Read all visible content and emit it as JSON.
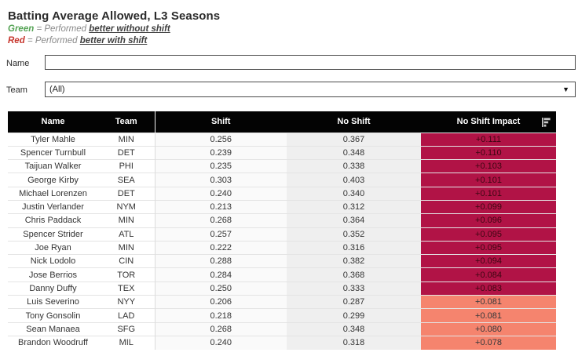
{
  "header": {
    "title": "Batting Average Allowed, L3 Seasons",
    "legend": [
      {
        "color_word": "Green",
        "mid": " = Performed ",
        "emphasis": "better without shift",
        "color": "#54a354"
      },
      {
        "color_word": "Red",
        "mid": " = Performed ",
        "emphasis": "better with shift",
        "color": "#c7372e"
      }
    ]
  },
  "filters": {
    "name_label": "Name",
    "name_value": "",
    "team_label": "Team",
    "team_value": "(All)",
    "caret_glyph": "▼"
  },
  "table": {
    "columns": [
      "Name",
      "Team",
      "Shift",
      "No Shift",
      "No Shift Impact"
    ],
    "colors": {
      "impact_high": "#b11346",
      "impact_low": "#f5846e",
      "header_bg": "#030303"
    },
    "rows": [
      {
        "name": "Tyler Mahle",
        "team": "MIN",
        "shift": "0.256",
        "no_shift": "0.367",
        "impact": "+0.111",
        "impact_level": "high"
      },
      {
        "name": "Spencer Turnbull",
        "team": "DET",
        "shift": "0.239",
        "no_shift": "0.348",
        "impact": "+0.110",
        "impact_level": "high"
      },
      {
        "name": "Taijuan Walker",
        "team": "PHI",
        "shift": "0.235",
        "no_shift": "0.338",
        "impact": "+0.103",
        "impact_level": "high"
      },
      {
        "name": "George Kirby",
        "team": "SEA",
        "shift": "0.303",
        "no_shift": "0.403",
        "impact": "+0.101",
        "impact_level": "high"
      },
      {
        "name": "Michael Lorenzen",
        "team": "DET",
        "shift": "0.240",
        "no_shift": "0.340",
        "impact": "+0.101",
        "impact_level": "high"
      },
      {
        "name": "Justin Verlander",
        "team": "NYM",
        "shift": "0.213",
        "no_shift": "0.312",
        "impact": "+0.099",
        "impact_level": "high"
      },
      {
        "name": "Chris Paddack",
        "team": "MIN",
        "shift": "0.268",
        "no_shift": "0.364",
        "impact": "+0.096",
        "impact_level": "high"
      },
      {
        "name": "Spencer Strider",
        "team": "ATL",
        "shift": "0.257",
        "no_shift": "0.352",
        "impact": "+0.095",
        "impact_level": "high"
      },
      {
        "name": "Joe Ryan",
        "team": "MIN",
        "shift": "0.222",
        "no_shift": "0.316",
        "impact": "+0.095",
        "impact_level": "high"
      },
      {
        "name": "Nick Lodolo",
        "team": "CIN",
        "shift": "0.288",
        "no_shift": "0.382",
        "impact": "+0.094",
        "impact_level": "high"
      },
      {
        "name": "Jose Berrios",
        "team": "TOR",
        "shift": "0.284",
        "no_shift": "0.368",
        "impact": "+0.084",
        "impact_level": "high"
      },
      {
        "name": "Danny Duffy",
        "team": "TEX",
        "shift": "0.250",
        "no_shift": "0.333",
        "impact": "+0.083",
        "impact_level": "high"
      },
      {
        "name": "Luis Severino",
        "team": "NYY",
        "shift": "0.206",
        "no_shift": "0.287",
        "impact": "+0.081",
        "impact_level": "low"
      },
      {
        "name": "Tony Gonsolin",
        "team": "LAD",
        "shift": "0.218",
        "no_shift": "0.299",
        "impact": "+0.081",
        "impact_level": "low"
      },
      {
        "name": "Sean Manaea",
        "team": "SFG",
        "shift": "0.268",
        "no_shift": "0.348",
        "impact": "+0.080",
        "impact_level": "low"
      },
      {
        "name": "Brandon Woodruff",
        "team": "MIL",
        "shift": "0.240",
        "no_shift": "0.318",
        "impact": "+0.078",
        "impact_level": "low"
      }
    ]
  }
}
